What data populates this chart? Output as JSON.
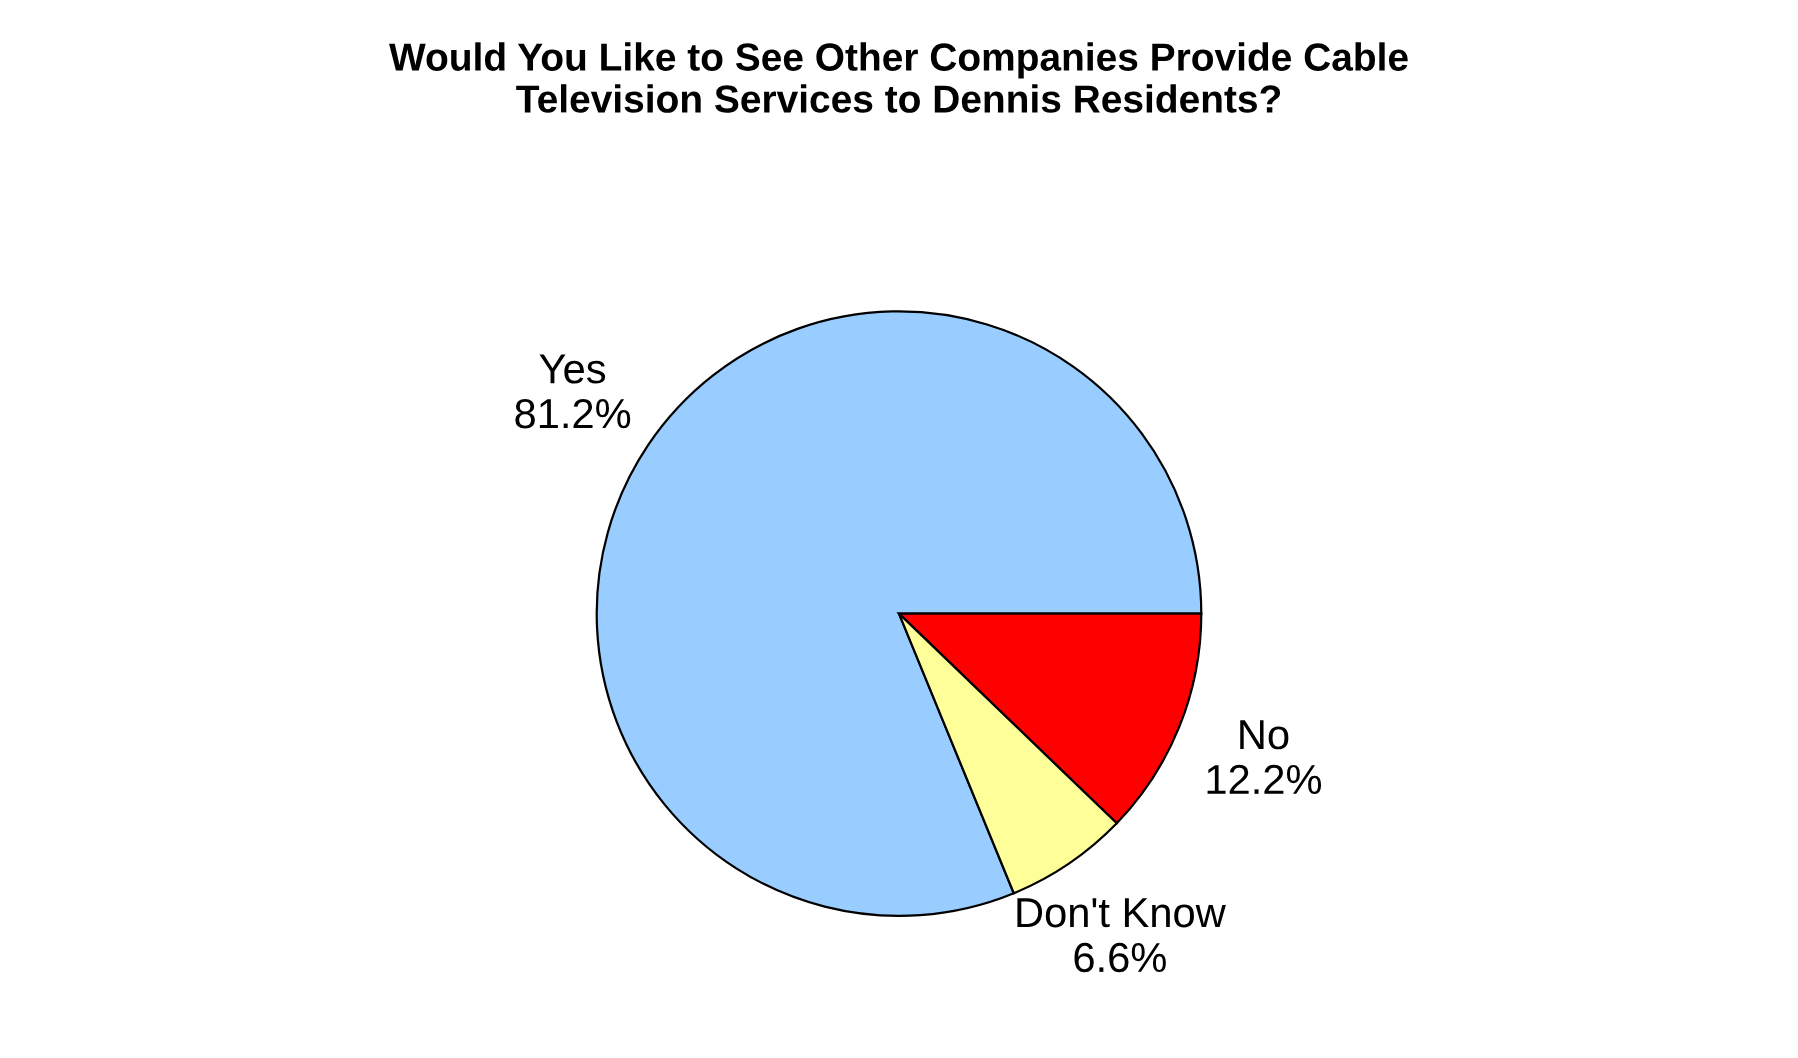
{
  "chart_data": {
    "type": "pie",
    "title": "Would You Like to See Other Companies Provide Cable\nTelevision Services to Dennis Residents?",
    "categories": [
      "Yes",
      "No",
      "Don't Know"
    ],
    "values": [
      81.2,
      12.2,
      6.6
    ],
    "value_labels": [
      "81.2%",
      "12.2%",
      "6.6%"
    ],
    "colors": [
      "#99ccff",
      "#ff0000",
      "#ffff99"
    ]
  }
}
